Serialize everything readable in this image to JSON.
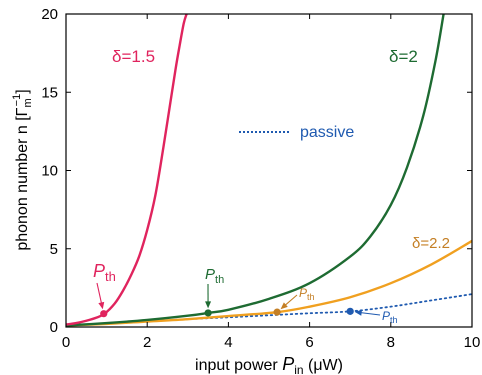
{
  "chart_data": {
    "type": "line",
    "title": "",
    "xlabel": {
      "text": "input power ",
      "var": "P",
      "sub": "in",
      "unit": " (μW)"
    },
    "ylabel": {
      "text": "phonon number n [Γ",
      "sub": "m",
      "sup": "−1",
      "end": "]"
    },
    "xlim": [
      0,
      10
    ],
    "ylim": [
      0,
      20
    ],
    "xticks": [
      "0",
      "2",
      "4",
      "6",
      "8",
      "10"
    ],
    "yticks": [
      "0",
      "5",
      "10",
      "15",
      "20"
    ],
    "grid": false,
    "series": [
      {
        "name": "δ=1.5",
        "color": "#e0245e",
        "style": "solid",
        "x": [
          0,
          0.25,
          0.5,
          0.75,
          0.95,
          1.2,
          1.4,
          1.6,
          1.8,
          2.0,
          2.2,
          2.4,
          2.55,
          2.7,
          2.8,
          2.9,
          2.97
        ],
        "y": [
          0.15,
          0.25,
          0.4,
          0.6,
          0.85,
          1.5,
          2.3,
          3.3,
          4.5,
          6.2,
          8.4,
          11.5,
          14.0,
          16.5,
          18.0,
          19.4,
          20.0
        ]
      },
      {
        "name": "δ=2",
        "color": "#1e6b32",
        "style": "solid",
        "x": [
          0,
          1,
          2,
          3,
          3.5,
          4,
          5,
          6,
          7,
          7.5,
          8,
          8.4,
          8.8,
          9.1,
          9.3
        ],
        "y": [
          0.1,
          0.25,
          0.45,
          0.72,
          0.9,
          1.1,
          1.8,
          2.8,
          4.5,
          5.8,
          7.8,
          10.2,
          13.5,
          17.0,
          20.0
        ]
      },
      {
        "name": "δ=2.2",
        "color": "#f0a020",
        "style": "solid",
        "x": [
          0,
          1,
          2,
          3,
          4,
          5.2,
          6,
          7,
          8,
          9,
          10
        ],
        "y": [
          0.1,
          0.2,
          0.35,
          0.5,
          0.7,
          0.95,
          1.3,
          1.9,
          2.8,
          4.0,
          5.5
        ]
      },
      {
        "name": "passive",
        "color": "#1f5ab0",
        "style": "dotted",
        "x": [
          0,
          1,
          2,
          3,
          4,
          5,
          6,
          7,
          8,
          9,
          10
        ],
        "y": [
          0.1,
          0.2,
          0.35,
          0.5,
          0.62,
          0.75,
          0.88,
          1.0,
          1.3,
          1.7,
          2.1
        ]
      }
    ],
    "threshold_points": [
      {
        "series": "δ=1.5",
        "x": 0.93,
        "y": 0.85,
        "color": "#e0245e"
      },
      {
        "series": "δ=2",
        "x": 3.5,
        "y": 0.9,
        "color": "#1e6b32"
      },
      {
        "series": "δ=2.2",
        "x": 5.2,
        "y": 0.95,
        "color": "#c47f25"
      },
      {
        "series": "passive",
        "x": 7.0,
        "y": 1.0,
        "color": "#1f5ab0"
      }
    ],
    "annotations": [
      {
        "id": "d15",
        "text": "δ=1.5",
        "color": "#e0245e"
      },
      {
        "id": "d2",
        "text": "δ=2",
        "color": "#1e6b32"
      },
      {
        "id": "d22",
        "text": "δ=2.2",
        "color": "#c47f25"
      },
      {
        "id": "passive",
        "text": "passive",
        "color": "#1f5ab0"
      },
      {
        "id": "pth1",
        "var": "P",
        "sub": "th",
        "color": "#e0245e"
      },
      {
        "id": "pth2",
        "var": "P",
        "sub": "th",
        "color": "#1e6b32"
      },
      {
        "id": "pth3",
        "var": "P",
        "sub": "th",
        "color": "#c47f25"
      },
      {
        "id": "pth4",
        "var": "P",
        "sub": "th",
        "color": "#1f5ab0"
      }
    ]
  }
}
